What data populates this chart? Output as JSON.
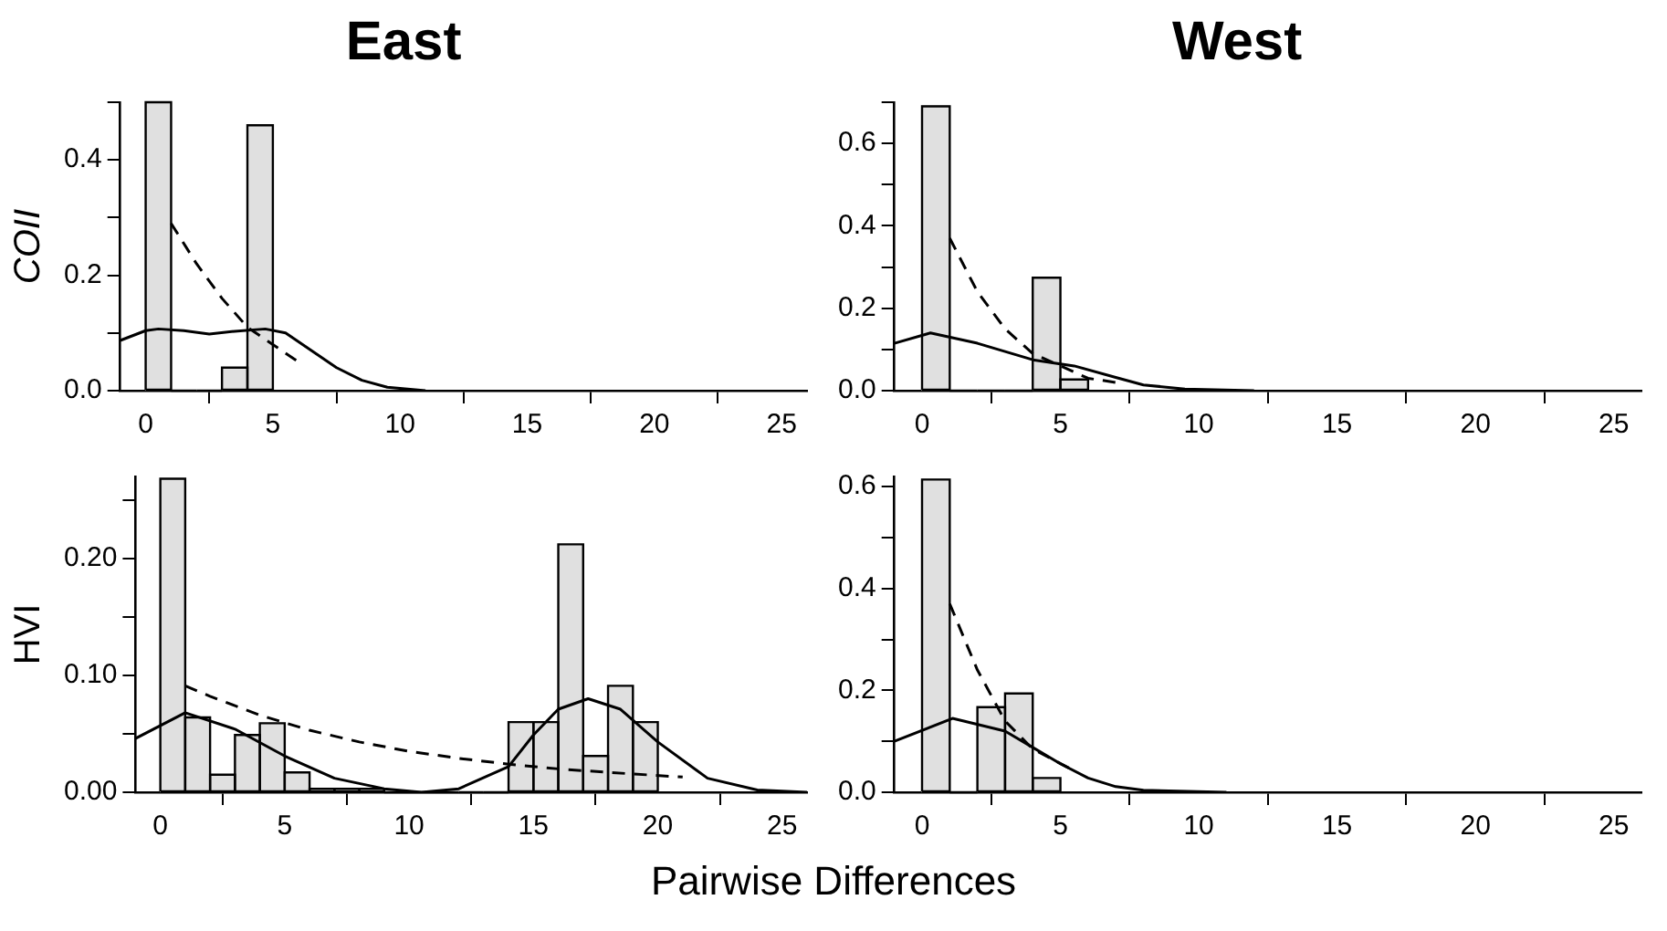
{
  "chart_data": [
    {
      "type": "histogram",
      "title": "East",
      "ylabel": "COII",
      "bins": [
        0,
        1,
        2,
        3,
        4,
        5
      ],
      "values": [
        0.5,
        0,
        0,
        0.04,
        0.46
      ],
      "color": "#e0e0e0",
      "xlim": [
        -1,
        26
      ],
      "xticks": [
        0,
        5,
        10,
        15,
        20,
        25
      ],
      "ylim": [
        0,
        0.5
      ],
      "yticks": [
        {
          "value": 0,
          "label": "0.0"
        },
        {
          "value": 0.1,
          "label": null
        },
        {
          "value": 0.2,
          "label": "0.2"
        },
        {
          "value": 0.3,
          "label": null
        },
        {
          "value": 0.4,
          "label": "0.4"
        },
        {
          "value": 0.5,
          "label": null
        }
      ],
      "series": [
        {
          "type": "line",
          "line_style": "dashed",
          "color": "#000000",
          "x": [
            1,
            2,
            3,
            4,
            5,
            6
          ],
          "values": [
            0.29,
            0.22,
            0.16,
            0.11,
            0.08,
            0.05
          ]
        },
        {
          "type": "line",
          "line_style": "solid",
          "color": "#000000",
          "x": [
            -1,
            0,
            0.5,
            1.5,
            2.5,
            3.5,
            4.7,
            5.5,
            6.5,
            7.5,
            8.5,
            9.5,
            11
          ],
          "values": [
            0.087,
            0.104,
            0.107,
            0.104,
            0.098,
            0.103,
            0.107,
            0.1,
            0.07,
            0.04,
            0.018,
            0.006,
            0
          ]
        }
      ]
    },
    {
      "type": "histogram",
      "title": "West",
      "bins": [
        0,
        1,
        2,
        3,
        4,
        5,
        6
      ],
      "values": [
        0.69,
        0,
        0,
        0,
        0.274,
        0.027
      ],
      "color": "#e0e0e0",
      "xlim": [
        -1,
        26
      ],
      "xticks": [
        0,
        5,
        10,
        15,
        20,
        25
      ],
      "ylim": [
        0,
        0.7
      ],
      "yticks": [
        {
          "value": 0,
          "label": "0.0"
        },
        {
          "value": 0.1,
          "label": null
        },
        {
          "value": 0.2,
          "label": "0.2"
        },
        {
          "value": 0.3,
          "label": null
        },
        {
          "value": 0.4,
          "label": "0.4"
        },
        {
          "value": 0.5,
          "label": null
        },
        {
          "value": 0.6,
          "label": "0.6"
        },
        {
          "value": 0.7,
          "label": null
        }
      ],
      "series": [
        {
          "type": "line",
          "line_style": "dashed",
          "color": "#000000",
          "x": [
            1,
            2,
            3,
            4,
            5,
            6,
            7
          ],
          "values": [
            0.37,
            0.24,
            0.15,
            0.09,
            0.06,
            0.03,
            0.02
          ]
        },
        {
          "type": "line",
          "line_style": "solid",
          "color": "#000000",
          "x": [
            -1,
            0.3,
            2,
            4,
            5.5,
            7,
            8,
            9.5,
            12
          ],
          "values": [
            0.115,
            0.14,
            0.115,
            0.075,
            0.06,
            0.032,
            0.014,
            0.004,
            0
          ]
        }
      ]
    },
    {
      "type": "histogram",
      "ylabel": "HVI",
      "xlabel": "Pairwise Differences",
      "bins": [
        0,
        1,
        2,
        3,
        4,
        5,
        6,
        7,
        8,
        9,
        10,
        11,
        12,
        13,
        14,
        15,
        16,
        17,
        18,
        19,
        20
      ],
      "values": [
        0.268,
        0.064,
        0.015,
        0.049,
        0.059,
        0.017,
        0.003,
        0.003,
        0.003,
        0,
        0,
        0,
        0,
        0,
        0.06,
        0.06,
        0.212,
        0.031,
        0.091,
        0.06
      ],
      "color": "#e0e0e0",
      "xlim": [
        -1,
        26
      ],
      "xticks": [
        0,
        5,
        10,
        15,
        20,
        25
      ],
      "ylim": [
        0,
        0.27
      ],
      "yticks": [
        {
          "value": 0,
          "label": "0.00"
        },
        {
          "value": 0.05,
          "label": null
        },
        {
          "value": 0.1,
          "label": "0.10"
        },
        {
          "value": 0.15,
          "label": null
        },
        {
          "value": 0.2,
          "label": "0.20"
        },
        {
          "value": 0.25,
          "label": null
        }
      ],
      "series": [
        {
          "type": "line",
          "line_style": "dashed",
          "color": "#000000",
          "x": [
            1,
            2,
            3,
            4,
            6,
            8,
            10,
            12,
            14,
            16,
            18,
            21
          ],
          "values": [
            0.091,
            0.082,
            0.074,
            0.066,
            0.053,
            0.043,
            0.035,
            0.029,
            0.024,
            0.02,
            0.017,
            0.013
          ]
        },
        {
          "type": "line",
          "line_style": "solid",
          "color": "#000000",
          "x": [
            -1,
            1,
            3,
            5,
            7,
            9,
            10.5,
            12,
            14,
            15,
            16,
            17.2,
            18.5,
            20,
            22,
            24,
            26
          ],
          "values": [
            0.046,
            0.068,
            0.054,
            0.031,
            0.012,
            0.003,
            0,
            0.003,
            0.022,
            0.049,
            0.071,
            0.08,
            0.071,
            0.043,
            0.012,
            0.002,
            0
          ]
        }
      ]
    },
    {
      "type": "histogram",
      "bins": [
        0,
        1,
        2,
        3,
        4,
        5
      ],
      "values": [
        0.614,
        0,
        0.167,
        0.194,
        0.028
      ],
      "color": "#e0e0e0",
      "xlim": [
        -1,
        26
      ],
      "xticks": [
        0,
        5,
        10,
        15,
        20,
        25
      ],
      "ylim": [
        0,
        0.62
      ],
      "yticks": [
        {
          "value": 0,
          "label": "0.0"
        },
        {
          "value": 0.1,
          "label": null
        },
        {
          "value": 0.2,
          "label": "0.2"
        },
        {
          "value": 0.3,
          "label": null
        },
        {
          "value": 0.4,
          "label": "0.4"
        },
        {
          "value": 0.5,
          "label": null
        },
        {
          "value": 0.6,
          "label": "0.6"
        }
      ],
      "series": [
        {
          "type": "line",
          "line_style": "dashed",
          "color": "#000000",
          "x": [
            1,
            2,
            3,
            4,
            5.5
          ],
          "values": [
            0.37,
            0.24,
            0.14,
            0.085,
            0.042
          ]
        },
        {
          "type": "line",
          "line_style": "solid",
          "color": "#000000",
          "x": [
            -1,
            1.1,
            3,
            4,
            5,
            6,
            7,
            8,
            11
          ],
          "values": [
            0.1,
            0.145,
            0.12,
            0.088,
            0.056,
            0.028,
            0.011,
            0.004,
            0
          ]
        }
      ]
    }
  ]
}
